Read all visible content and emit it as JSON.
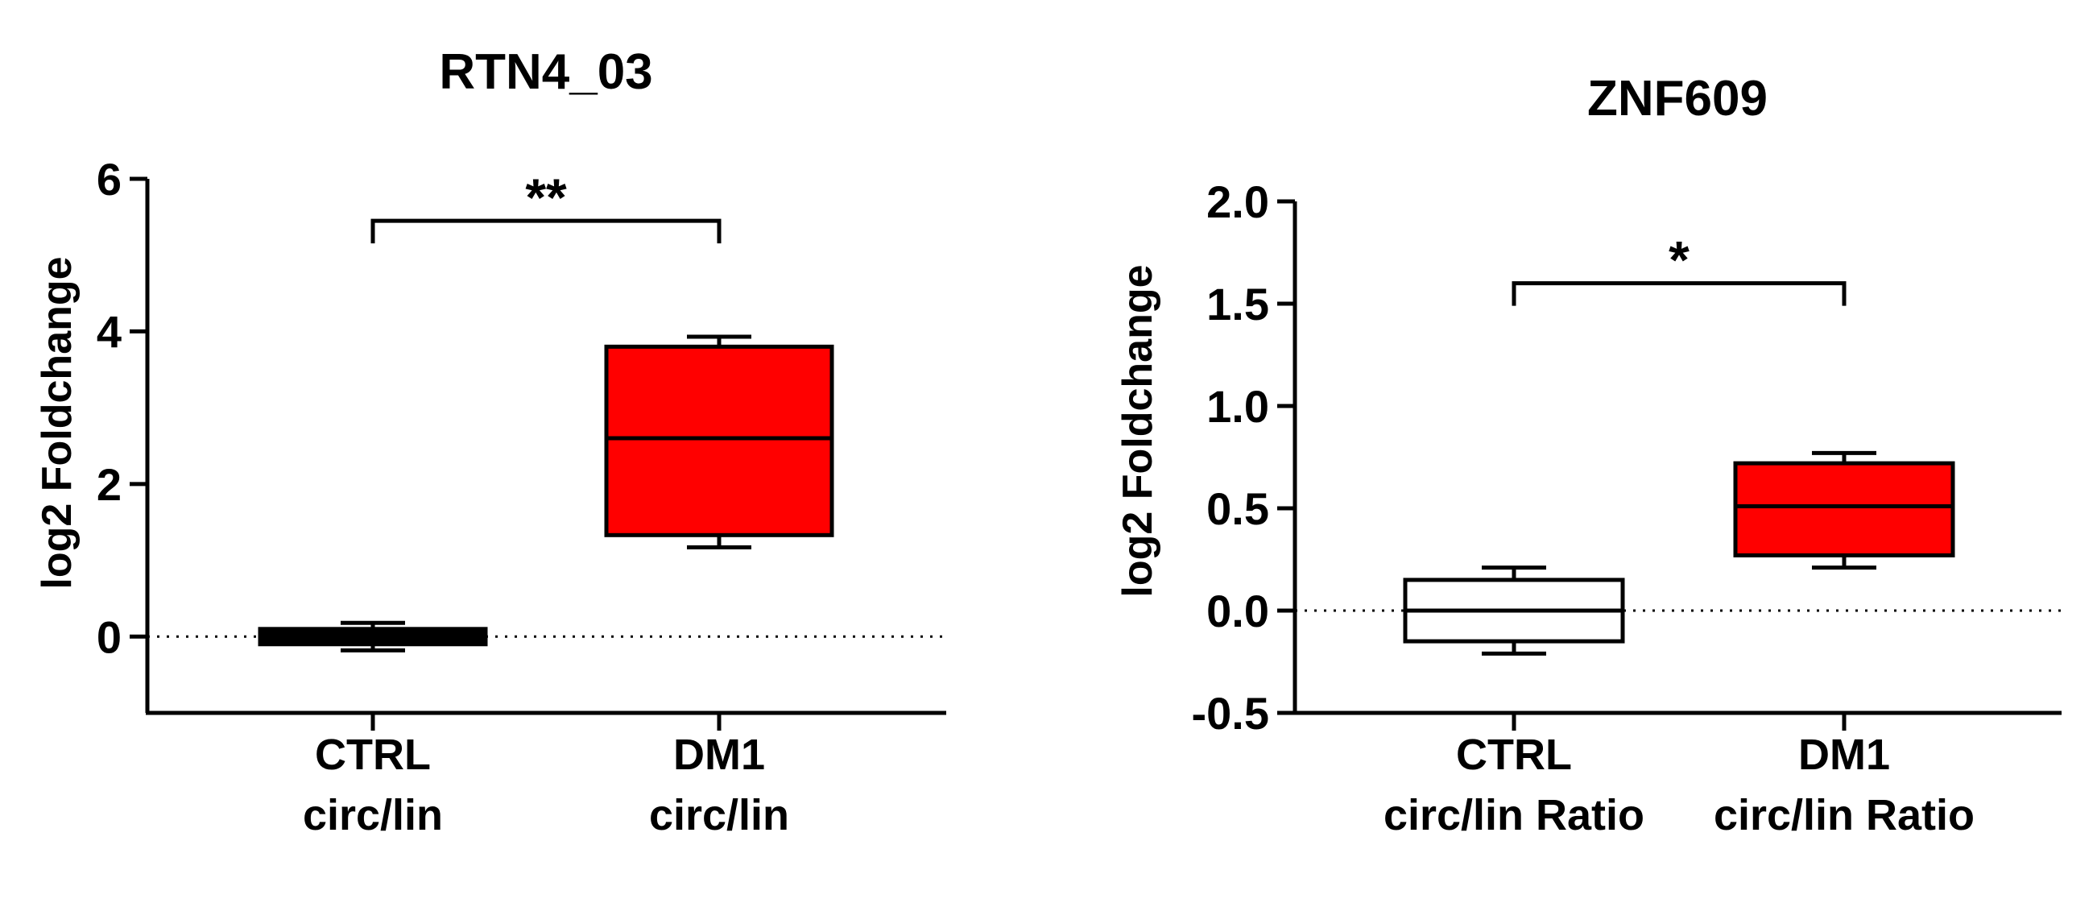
{
  "chart_data": [
    {
      "type": "box",
      "title": "RTN4_03",
      "ylabel": "log2 Foldchange",
      "ylim": [
        -1,
        6
      ],
      "yticks": [
        0,
        2,
        4,
        6
      ],
      "ytick_labels": [
        "0",
        "2",
        "4",
        "6"
      ],
      "reference_line": 0,
      "groups": [
        {
          "label_lines": [
            "CTRL",
            "circ/lin"
          ],
          "min": -0.18,
          "q1": -0.1,
          "median": 0,
          "q3": 0.1,
          "max": 0.18,
          "color": "#000000"
        },
        {
          "label_lines": [
            "DM1",
            "circ/lin"
          ],
          "min": 1.17,
          "q1": 1.33,
          "median": 2.6,
          "q3": 3.8,
          "max": 3.93,
          "color": "#ff0000"
        }
      ],
      "significance": {
        "from": 0,
        "to": 1,
        "y": 5.45,
        "label": "**"
      }
    },
    {
      "type": "box",
      "title": "ZNF609",
      "ylabel": "log2 Foldchange",
      "ylim": [
        -0.5,
        2.0
      ],
      "yticks": [
        -0.5,
        0.0,
        0.5,
        1.0,
        1.5,
        2.0
      ],
      "ytick_labels": [
        "-0.5",
        "0.0",
        "0.5",
        "1.0",
        "1.5",
        "2.0"
      ],
      "reference_line": 0,
      "groups": [
        {
          "label_lines": [
            "CTRL",
            "circ/lin Ratio"
          ],
          "min": -0.21,
          "q1": -0.15,
          "median": 0,
          "q3": 0.15,
          "max": 0.21,
          "color": "#ffffff"
        },
        {
          "label_lines": [
            "DM1",
            "circ/lin Ratio"
          ],
          "min": 0.21,
          "q1": 0.27,
          "median": 0.51,
          "q3": 0.72,
          "max": 0.77,
          "color": "#ff0000"
        }
      ],
      "significance": {
        "from": 0,
        "to": 1,
        "y": 1.6,
        "label": "*"
      }
    }
  ]
}
